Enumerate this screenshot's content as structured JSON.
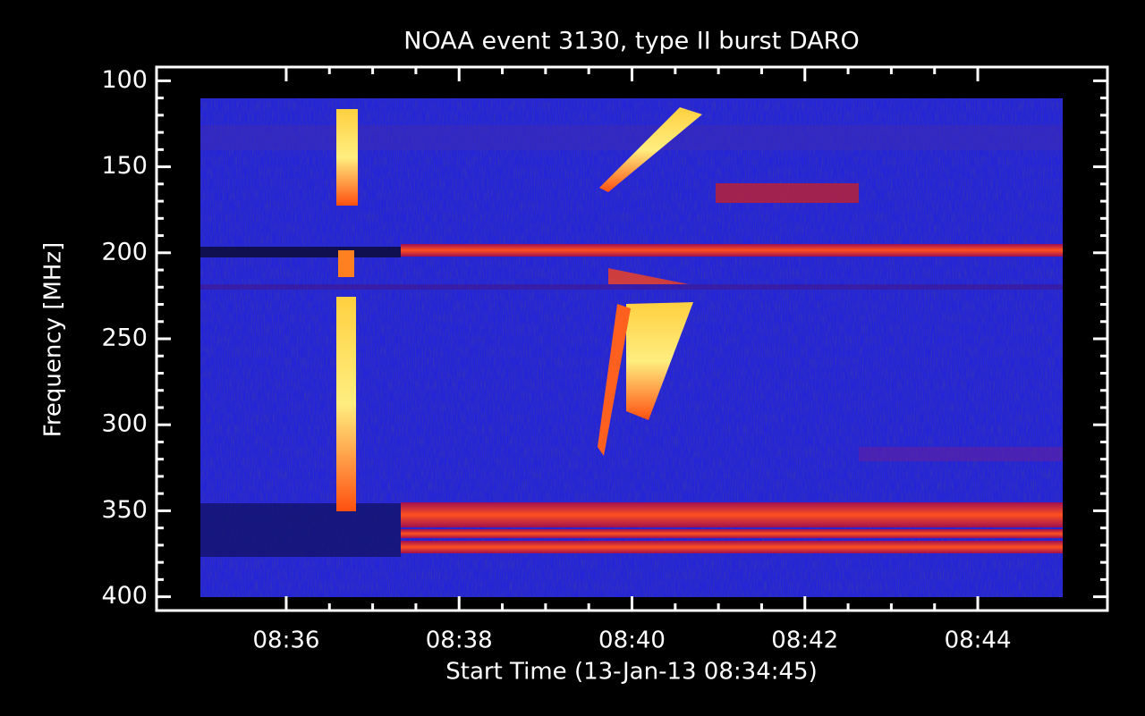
{
  "chart_data": {
    "type": "spectrogram",
    "title": "NOAA event 3130, type II burst DARO",
    "x_label": "Start Time (13-Jan-13 08:34:45)",
    "y_label": "Frequency [MHz]",
    "xlim": [
      514.5,
      525.5
    ],
    "xticks": [
      {
        "value": 516,
        "label": "08:36"
      },
      {
        "value": 518,
        "label": "08:38"
      },
      {
        "value": 520,
        "label": "08:40"
      },
      {
        "value": 522,
        "label": "08:42"
      },
      {
        "value": 524,
        "label": "08:44"
      }
    ],
    "ylim": [
      408,
      92
    ],
    "yticks": [
      100,
      150,
      200,
      250,
      300,
      350,
      400
    ],
    "frame_color": "#ffffff"
  }
}
